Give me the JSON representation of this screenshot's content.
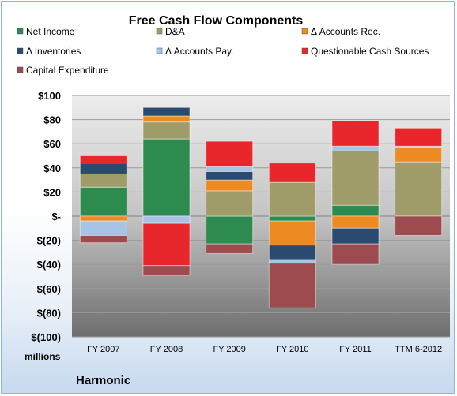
{
  "chart_data": {
    "type": "bar",
    "stacked": true,
    "title": "Free Cash Flow Components",
    "ylabel": "millions",
    "footer": "Harmonic",
    "ylim": [
      -100,
      100
    ],
    "yticks": [
      100,
      80,
      60,
      40,
      20,
      0,
      -20,
      -40,
      -60,
      -80,
      -100
    ],
    "ytick_labels": [
      "$100",
      "$80",
      "$60",
      "$40",
      "$20",
      "$-",
      "$(20)",
      "$(40)",
      "$(60)",
      "$(80)",
      "$(100)"
    ],
    "categories": [
      "FY 2007",
      "FY 2008",
      "FY 2009",
      "FY 2010",
      "FY 2011",
      "TTM 6-2012"
    ],
    "legend_position": "top",
    "series": [
      {
        "name": "Net Income",
        "color": "#2e8b4f",
        "values": [
          24,
          64,
          -23,
          -4,
          9,
          0
        ]
      },
      {
        "name": "D&A",
        "color": "#a09c6a",
        "values": [
          11,
          14,
          21,
          28,
          45,
          45
        ]
      },
      {
        "name": "Δ Accounts Rec.",
        "color": "#ee8a22",
        "values": [
          -4,
          5,
          9,
          -20,
          -10,
          12
        ]
      },
      {
        "name": "Δ Inventories",
        "color": "#2b4a70",
        "values": [
          9,
          7,
          7,
          -12,
          -13,
          0
        ]
      },
      {
        "name": "Δ Accounts Pay.",
        "color": "#a6c4e6",
        "values": [
          -12,
          -6,
          4,
          -3,
          4,
          1
        ]
      },
      {
        "name": "Questionable Cash Sources",
        "color": "#e8262b",
        "values": [
          6,
          -35,
          21,
          16,
          21,
          15
        ]
      },
      {
        "name": "Capital Expenditure",
        "color": "#9d4b4f",
        "values": [
          -6,
          -8,
          -8,
          -37,
          -17,
          -16
        ]
      }
    ]
  }
}
